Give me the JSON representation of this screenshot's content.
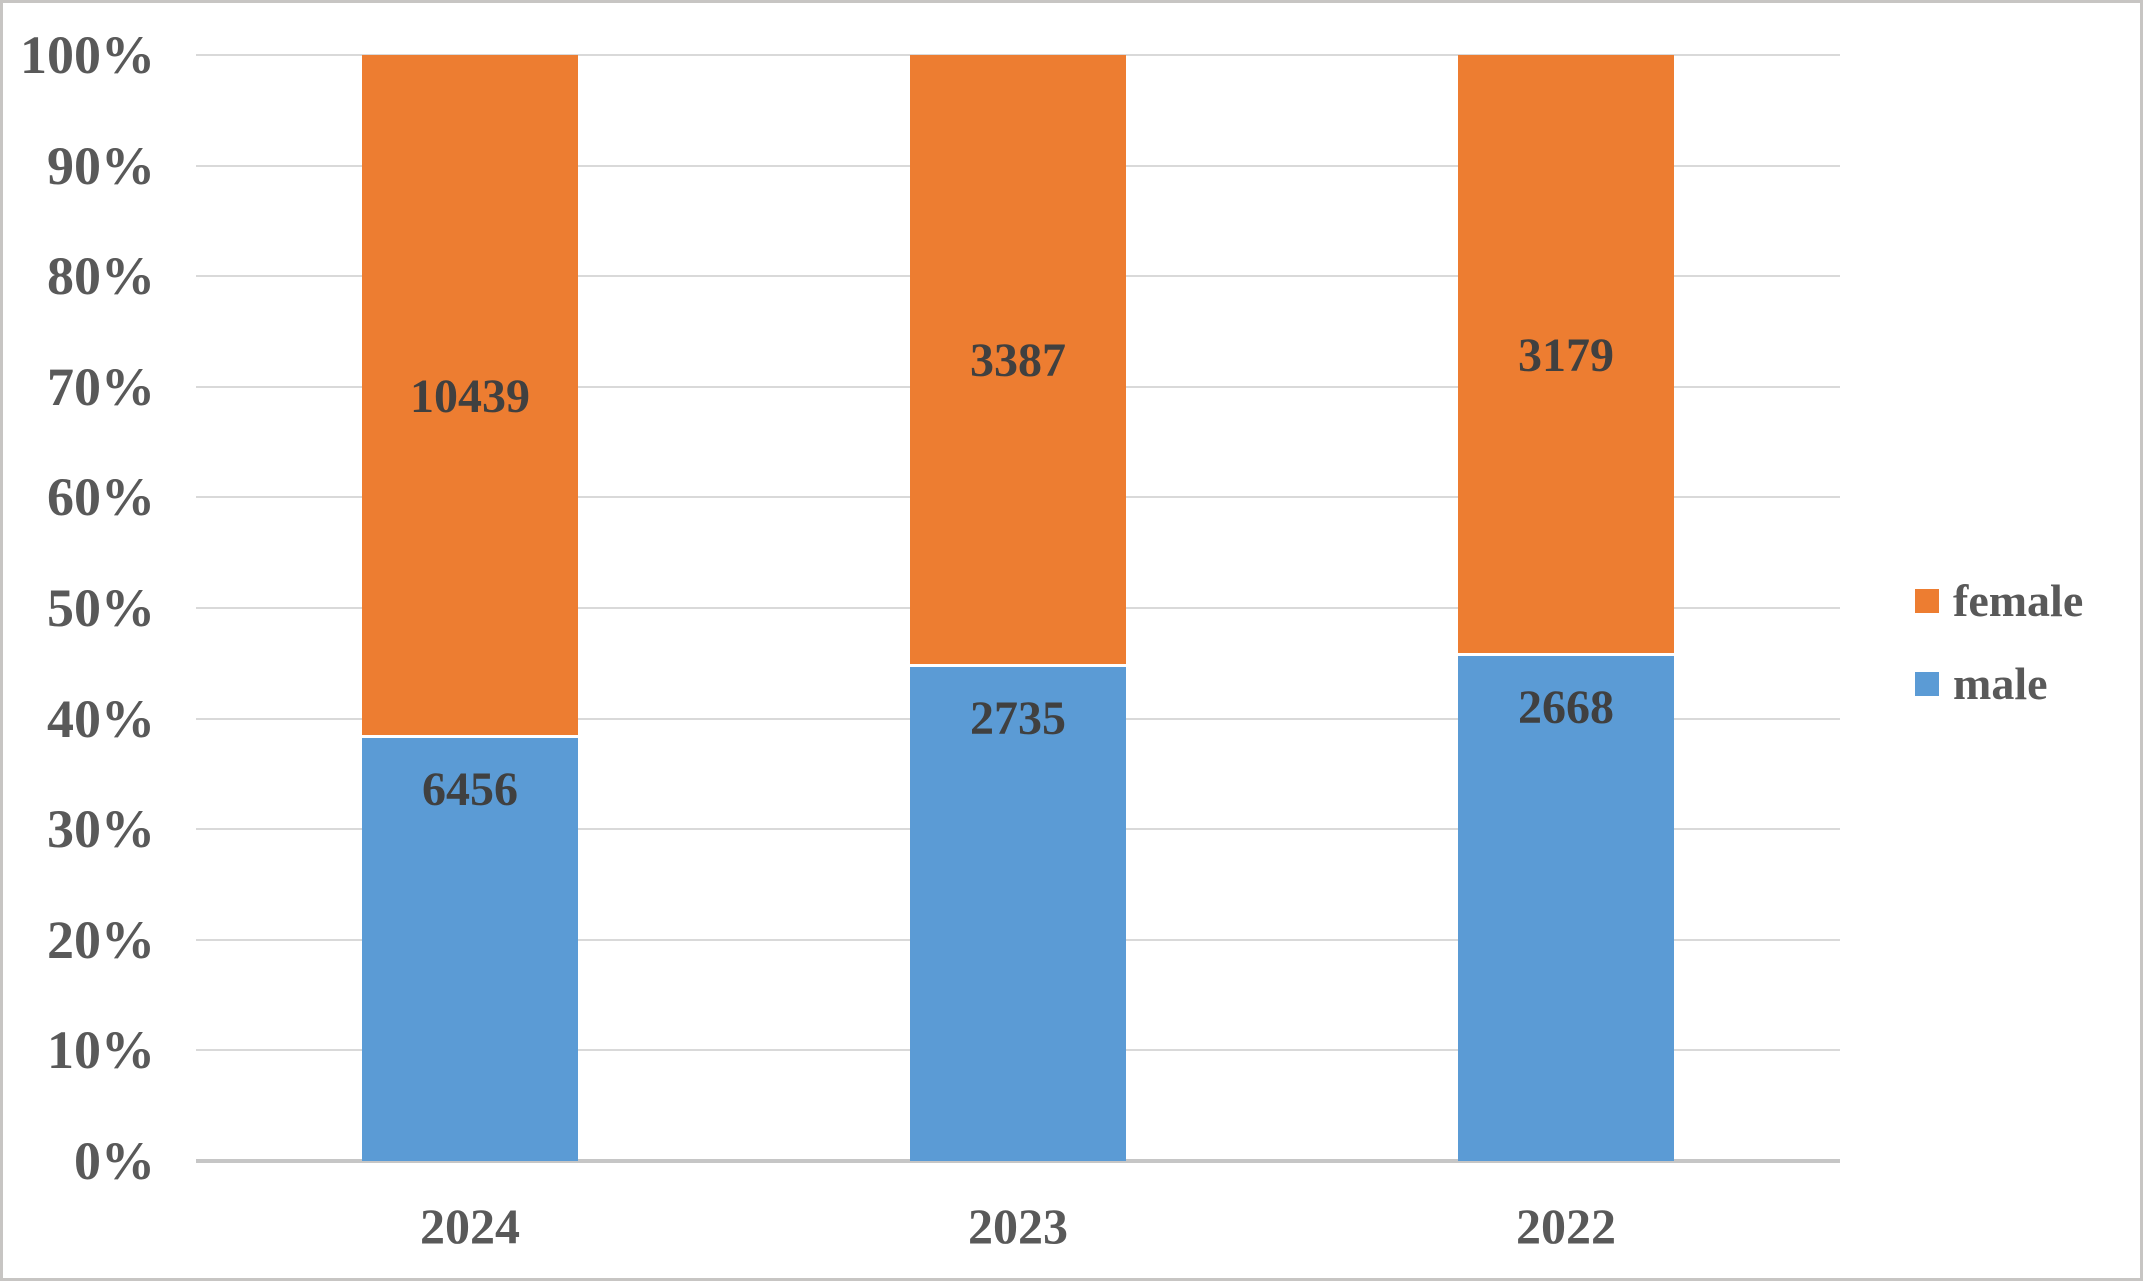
{
  "chart_data": {
    "type": "bar",
    "variant": "100-percent-stacked-column",
    "categories": [
      "2024",
      "2023",
      "2022"
    ],
    "series": [
      {
        "name": "male",
        "color": "#5B9BD5",
        "values": [
          6456,
          2735,
          2668
        ],
        "label_position": "inside-end"
      },
      {
        "name": "female",
        "color": "#ED7D31",
        "values": [
          10439,
          3387,
          3179
        ],
        "label_position": "center"
      }
    ],
    "stack_order_bottom_to_top": [
      "male",
      "female"
    ],
    "y_axis": {
      "ticks": [
        "0%",
        "10%",
        "20%",
        "30%",
        "40%",
        "50%",
        "60%",
        "70%",
        "80%",
        "90%",
        "100%"
      ],
      "min": 0,
      "max": 1,
      "format": "percent"
    },
    "legend": {
      "position": "right",
      "entries": [
        "female",
        "male"
      ]
    },
    "grid": true
  },
  "colors": {
    "female": "#ED7D31",
    "male": "#5B9BD5",
    "gridline": "#D9D9D9",
    "axis_line": "#C6C6C6",
    "tick_label": "#595959",
    "data_label": "#404040",
    "frame_border": "#C7C5C3",
    "background": "#FFFFFF",
    "segment_gap": "#FFFFFF"
  }
}
